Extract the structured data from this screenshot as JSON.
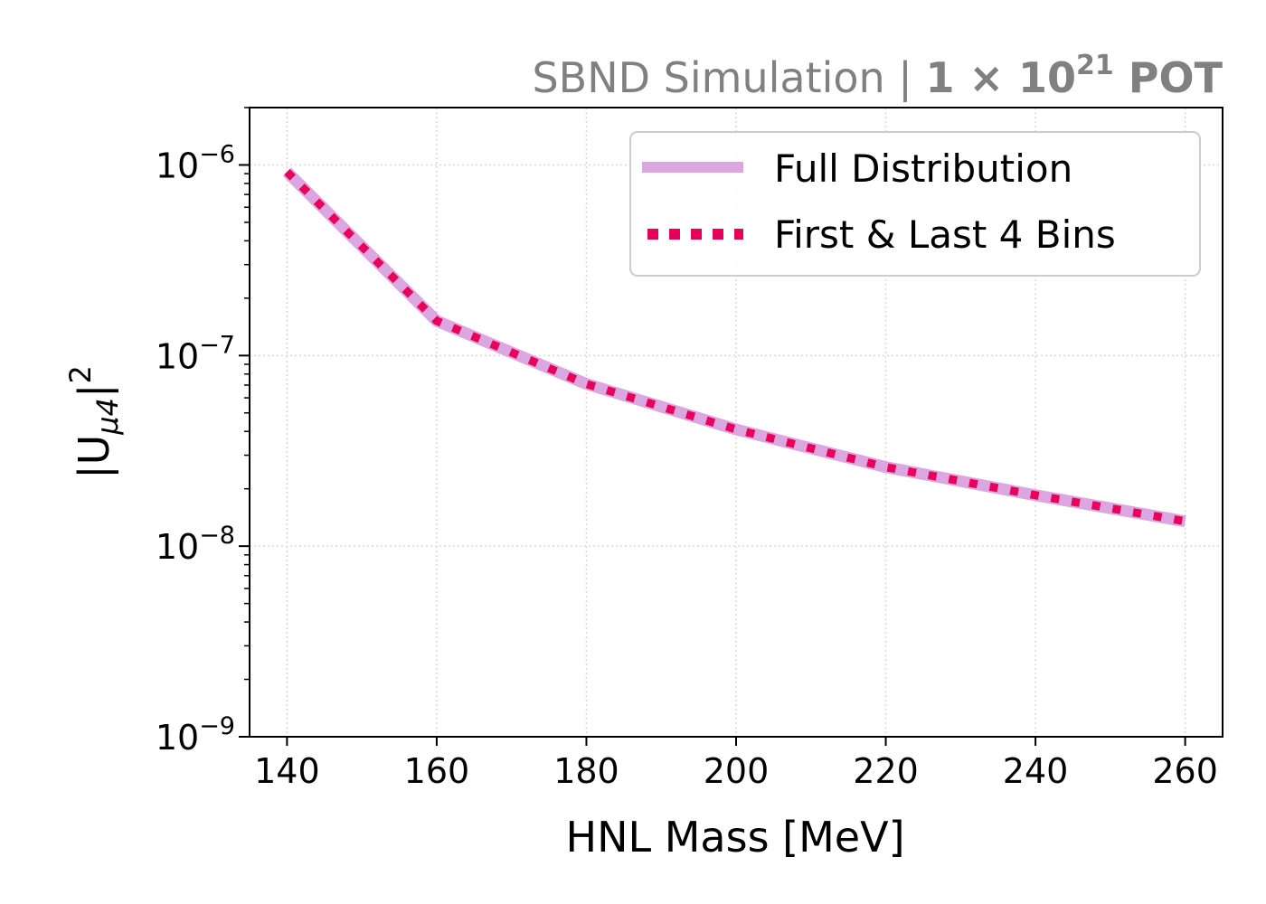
{
  "chart_data": {
    "type": "line",
    "title": {
      "normal": "SBND Simulation | ",
      "bold_base": "1 × 10",
      "bold_exp": "21",
      "bold_tail": " POT"
    },
    "xlabel": "HNL Mass [MeV]",
    "ylabel": {
      "open": "|U",
      "sub": "μ4",
      "close": "|",
      "sup": "2"
    },
    "xlim": [
      135,
      265
    ],
    "ylim": [
      1e-09,
      2e-06
    ],
    "yscale": "log",
    "xticks": [
      140,
      160,
      180,
      200,
      220,
      240,
      260
    ],
    "yticks": [
      {
        "value": 1e-09,
        "base": "10",
        "exp": "−9"
      },
      {
        "value": 1e-08,
        "base": "10",
        "exp": "−8"
      },
      {
        "value": 1e-07,
        "base": "10",
        "exp": "−7"
      },
      {
        "value": 1e-06,
        "base": "10",
        "exp": "−6"
      }
    ],
    "grid": true,
    "legend_position": "upper right",
    "x": [
      140,
      160,
      180,
      200,
      220,
      240,
      260
    ],
    "series": [
      {
        "name": "Full Distribution",
        "color": "#dca7e0",
        "style": "solid",
        "values": [
          9.2e-07,
          1.52e-07,
          7.1e-08,
          4.1e-08,
          2.6e-08,
          1.85e-08,
          1.35e-08
        ]
      },
      {
        "name": "First & Last 4 Bins",
        "color": "#e8005a",
        "style": "dotted",
        "values": [
          9.2e-07,
          1.52e-07,
          7.1e-08,
          4.1e-08,
          2.6e-08,
          1.85e-08,
          1.35e-08
        ]
      }
    ]
  }
}
